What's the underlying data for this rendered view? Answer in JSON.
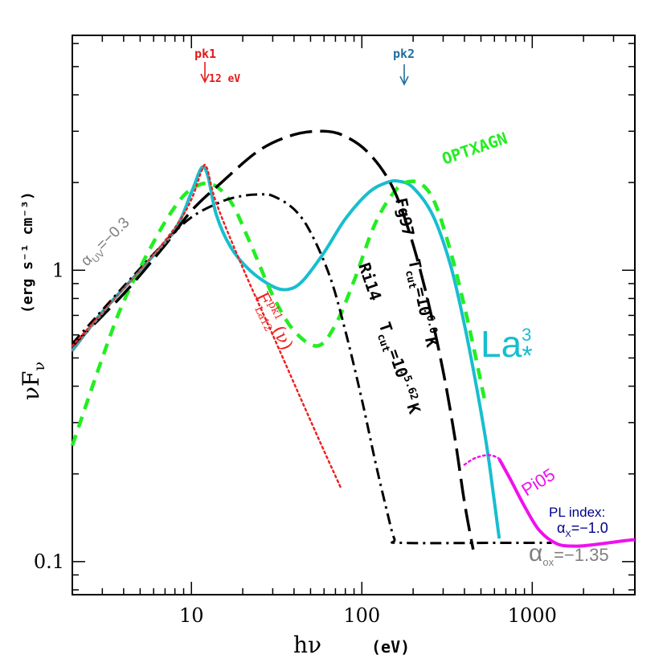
{
  "chart_data": {
    "type": "line",
    "xscale": "log",
    "yscale": "log",
    "xlim": [
      2,
      4000
    ],
    "ylim": [
      0.077,
      6.4
    ],
    "x_ticks": [
      {
        "value": 10,
        "label": "10"
      },
      {
        "value": 100,
        "label": "100"
      },
      {
        "value": 1000,
        "label": "1000"
      }
    ],
    "y_ticks": [
      {
        "value": 0.1,
        "label": "0.1"
      },
      {
        "value": 1,
        "label": "1"
      }
    ],
    "xlabel": "hν",
    "xlabel_unit": "(eV)",
    "ylabel": "νF",
    "ylabel_sub": "ν",
    "ylabel_unit": "(erg s⁻¹ cm⁻³)",
    "grid": false,
    "series": [
      {
        "name": "La³*",
        "color": "#17becf",
        "style": "solid",
        "x": [
          2,
          3,
          5,
          8,
          10,
          11.5,
          12.5,
          14,
          17,
          22,
          30,
          37,
          45,
          60,
          80,
          110,
          140,
          165,
          200,
          260,
          330,
          400,
          470,
          540,
          600,
          640
        ],
        "y": [
          0.53,
          0.72,
          1.0,
          1.38,
          1.85,
          2.25,
          2.1,
          1.55,
          1.2,
          1.0,
          0.88,
          0.86,
          0.92,
          1.15,
          1.5,
          1.85,
          2.0,
          2.02,
          1.92,
          1.55,
          1.05,
          0.65,
          0.4,
          0.25,
          0.16,
          0.12
        ]
      },
      {
        "name": "OPTXAGN",
        "color": "#22ee22",
        "style": "dashed",
        "x": [
          2,
          3,
          4,
          6,
          8,
          10,
          13,
          17,
          22,
          30,
          40,
          55,
          70,
          90,
          120,
          160,
          200,
          240,
          280,
          340,
          400,
          460,
          530
        ],
        "y": [
          0.25,
          0.5,
          0.78,
          1.25,
          1.65,
          1.9,
          1.98,
          1.72,
          1.25,
          0.82,
          0.62,
          0.55,
          0.65,
          0.92,
          1.45,
          1.9,
          2.02,
          1.9,
          1.6,
          1.1,
          0.75,
          0.52,
          0.35
        ]
      },
      {
        "name": "Fg97",
        "color": "#000000",
        "style": "longdash",
        "x": [
          2,
          4,
          7,
          10,
          15,
          25,
          40,
          60,
          80,
          110,
          150,
          190,
          240,
          300,
          350,
          400,
          450
        ],
        "y": [
          0.55,
          0.83,
          1.22,
          1.6,
          2.0,
          2.58,
          2.92,
          3.0,
          2.88,
          2.52,
          1.95,
          1.35,
          0.82,
          0.45,
          0.27,
          0.16,
          0.11
        ]
      },
      {
        "name": "Ri14",
        "color": "#000000",
        "style": "dashdot",
        "x": [
          2,
          4,
          7,
          10,
          15,
          20,
          25,
          30,
          40,
          50,
          65,
          80,
          100,
          120,
          140,
          155,
          170,
          640,
          1300
        ],
        "y": [
          0.56,
          0.88,
          1.25,
          1.52,
          1.72,
          1.8,
          1.82,
          1.8,
          1.62,
          1.35,
          0.95,
          0.62,
          0.36,
          0.22,
          0.15,
          0.12,
          0.116,
          0.116,
          0.116
        ]
      },
      {
        "name": "F^pk1_La12(ν)",
        "color": "#ee2222",
        "style": "dotted",
        "x": [
          2,
          5,
          8,
          10,
          11.5,
          12.3,
          14,
          20,
          30,
          45,
          60,
          75
        ],
        "y": [
          0.55,
          1.0,
          1.4,
          1.75,
          2.2,
          2.25,
          1.7,
          1.02,
          0.6,
          0.35,
          0.24,
          0.18
        ]
      },
      {
        "name": "Pi05",
        "color": "#ee11ee",
        "style": "solid",
        "x": [
          640,
          750,
          900,
          1100,
          1400,
          1800,
          2200,
          2800,
          3500,
          4000
        ],
        "y": [
          0.225,
          0.19,
          0.155,
          0.128,
          0.115,
          0.113,
          0.114,
          0.116,
          0.118,
          0.119
        ]
      },
      {
        "name": "",
        "color": "#ee11ee",
        "style": "dotted",
        "x": [
          400,
          450,
          500,
          560,
          620,
          660
        ],
        "y": [
          0.215,
          0.225,
          0.23,
          0.232,
          0.228,
          0.222
        ]
      },
      {
        "name": "",
        "color": "#808080",
        "style": "dotted",
        "x": [
          2,
          3,
          5,
          8
        ],
        "y": [
          0.53,
          0.71,
          1.0,
          1.35
        ]
      }
    ],
    "annotations": {
      "pk1_label": "pk1",
      "pk1_energy": "12 eV",
      "pk1_x": 12,
      "pk2_label": "pk2",
      "pk2_x": 180,
      "optxagn": "OPTXAGN",
      "fg97": "Fg97",
      "fg97_tcut_prefix": "T",
      "fg97_tcut_sub": "cut",
      "fg97_tcut_value": "=10",
      "fg97_tcut_exp": "6.0",
      "fg97_tcut_unit": "K",
      "ri14": "Ri14",
      "ri14_tcut_prefix": "T",
      "ri14_tcut_sub": "cut",
      "ri14_tcut_value": "=10",
      "ri14_tcut_exp": "5.62",
      "ri14_tcut_unit": "K",
      "la3_main": "La",
      "la3_sup": "3",
      "la3_sub": "*",
      "pi05": "Pi05",
      "alpha_uv_symbol": "α",
      "alpha_uv_sub": "UV",
      "alpha_uv_value": "=−0.3",
      "fpk1_main": "F",
      "fpk1_sup": "pk1",
      "fpk1_sub": "La12",
      "fpk1_arg": "(ν)",
      "pl_index_title": "PL index:",
      "alpha_x_symbol": "α",
      "alpha_x_sub": "X",
      "alpha_x_value": "=−1.0",
      "alpha_ox_symbol": "α",
      "alpha_ox_sub": "ox",
      "alpha_ox_value": "=−1.35"
    }
  }
}
